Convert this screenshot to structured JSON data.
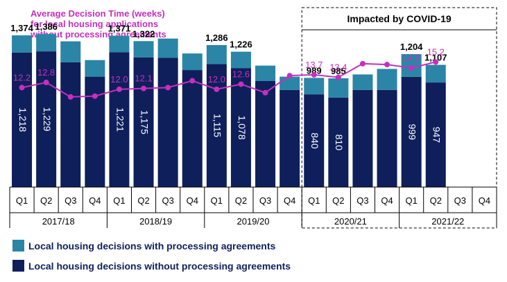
{
  "chart_data": {
    "type": "bar",
    "categories": [
      "Q1",
      "Q2",
      "Q3",
      "Q4",
      "Q1",
      "Q2",
      "Q3",
      "Q4",
      "Q1",
      "Q2",
      "Q3",
      "Q4",
      "Q1",
      "Q2",
      "Q3",
      "Q4",
      "Q1",
      "Q2",
      "Q3",
      "Q4"
    ],
    "years": [
      "2017/18",
      "2018/19",
      "2019/20",
      "2020/21",
      "2021/22"
    ],
    "series": [
      {
        "name": "Local housing decisions without processing agreements",
        "color": "#0e1f5b",
        "values": [
          1218,
          1229,
          1130,
          1000,
          1221,
          1175,
          1170,
          1060,
          1115,
          1078,
          960,
          880,
          840,
          810,
          880,
          880,
          999,
          947,
          null,
          null
        ],
        "labels": [
          "1,218",
          "1,229",
          "",
          "",
          "1,221",
          "1,175",
          "",
          "",
          "1,115",
          "1,078",
          "",
          "",
          "840",
          "810",
          "",
          "",
          "999",
          "947",
          "",
          ""
        ]
      },
      {
        "name": "Local housing decisions with processing agreements",
        "color": "#2b85a6",
        "values": [
          156,
          157,
          190,
          150,
          150,
          147,
          175,
          150,
          171,
          148,
          140,
          120,
          149,
          175,
          140,
          190,
          205,
          160,
          null,
          null
        ]
      }
    ],
    "total_labels": [
      "1,374",
      "1,386",
      "",
      "",
      "1,371",
      "1,322",
      "",
      "",
      "1,286",
      "1,226",
      "",
      "",
      "989",
      "985",
      "",
      "",
      "1,204",
      "1,107",
      "",
      ""
    ],
    "line_series": {
      "name": "Average Decision Time (weeks) for local housing applications without processing agreements",
      "title_lines": [
        "Average Decision Time (weeks)",
        "for local housing applications",
        "without processing agreements"
      ],
      "color": "#c62fbf",
      "values": [
        12.2,
        12.8,
        11.1,
        11.2,
        12.0,
        12.1,
        12.2,
        13.0,
        12.0,
        12.6,
        11.6,
        13.6,
        13.7,
        13.4,
        15.0,
        14.9,
        14.5,
        15.2,
        null,
        null
      ],
      "labels": [
        "12.2",
        "12.8",
        "",
        "",
        "12.0",
        "12.1",
        "",
        "",
        "12.0",
        "12.6",
        "",
        "",
        "13.7",
        "13.4",
        "",
        "",
        "14.5",
        "15.2",
        "",
        ""
      ]
    },
    "annotation": "Impacted by COVID-19",
    "bar_ylim": [
      0,
      1600
    ],
    "line_ylim": [
      5,
      18
    ],
    "legend_position": "bottom-left"
  }
}
